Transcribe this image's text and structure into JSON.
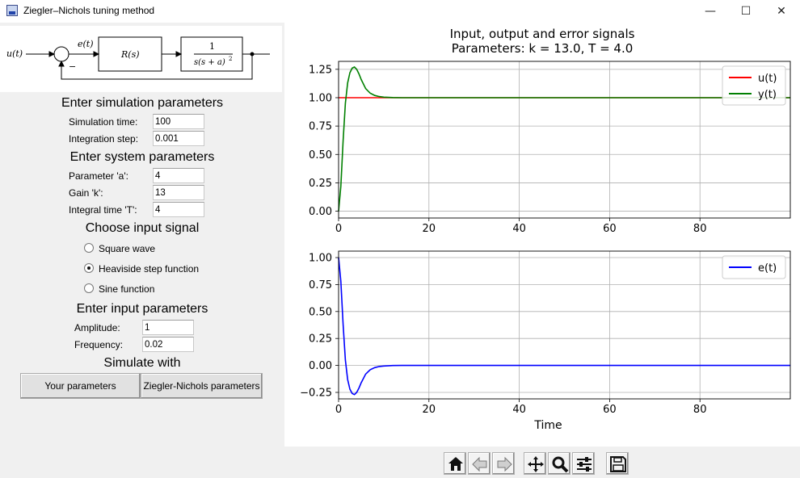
{
  "window": {
    "title": "Ziegler–Nichols tuning method",
    "minimize_glyph": "—",
    "maximize_glyph": "☐",
    "close_glyph": "✕",
    "icon": "app-icon"
  },
  "diagram": {
    "input_label": "u(t)",
    "error_label": "e(t)",
    "controller_label": "R(s)",
    "plant_numerator": "1",
    "plant_denominator": "s(s + a)",
    "plant_exponent": "2",
    "feedback_sign": "−"
  },
  "simulation": {
    "heading": "Enter simulation parameters",
    "time_label": "Simulation time:",
    "time_value": "100",
    "step_label": "Integration step:",
    "step_value": "0.001"
  },
  "system": {
    "heading": "Enter system parameters",
    "a_label": "Parameter 'a':",
    "a_value": "4",
    "k_label": "Gain 'k':",
    "k_value": "13",
    "T_label": "Integral time 'T':",
    "T_value": "4"
  },
  "input_signal": {
    "heading": "Choose input signal",
    "options": [
      {
        "label": "Square wave",
        "selected": false
      },
      {
        "label": "Heaviside step function",
        "selected": true
      },
      {
        "label": "Sine function",
        "selected": false
      }
    ]
  },
  "input_params": {
    "heading": "Enter input parameters",
    "amplitude_label": "Amplitude:",
    "amplitude_value": "1",
    "frequency_label": "Frequency:",
    "frequency_value": "0.02"
  },
  "simulate": {
    "heading": "Simulate with",
    "your_button": "Your parameters",
    "zn_button": "Ziegler-Nichols parameters"
  },
  "chart_data": [
    {
      "type": "line",
      "title": "Input, output and error signals",
      "subtitle": "Parameters: k = 13.0, T = 4.0",
      "xlim": [
        0,
        100
      ],
      "ylim": [
        -0.06,
        1.32
      ],
      "xticks": [
        0,
        20,
        40,
        60,
        80
      ],
      "yticks": [
        0.0,
        0.25,
        0.5,
        0.75,
        1.0,
        1.25
      ],
      "xtick_labels": [
        "0",
        "20",
        "40",
        "60",
        "80"
      ],
      "ytick_labels": [
        "0.00",
        "0.25",
        "0.50",
        "0.75",
        "1.00",
        "1.25"
      ],
      "grid": true,
      "legend_position": "top-right",
      "series": [
        {
          "name": "u(t)",
          "color": "#ff0000",
          "x": [
            0,
            100
          ],
          "y": [
            1.0,
            1.0
          ]
        },
        {
          "name": "y(t)",
          "color": "#008000",
          "x": [
            0,
            0.5,
            1,
            1.5,
            2,
            2.5,
            3,
            3.5,
            4,
            4.5,
            5,
            6,
            7,
            8,
            9,
            10,
            12,
            14,
            20,
            40,
            60,
            80,
            100
          ],
          "y": [
            0,
            0.22,
            0.62,
            0.95,
            1.13,
            1.22,
            1.26,
            1.27,
            1.25,
            1.21,
            1.16,
            1.08,
            1.04,
            1.02,
            1.01,
            1.005,
            1.001,
            1.0,
            1.0,
            1.0,
            1.0,
            1.0,
            1.0
          ]
        }
      ]
    },
    {
      "type": "line",
      "xlabel": "Time",
      "xlim": [
        0,
        100
      ],
      "ylim": [
        -0.31,
        1.06
      ],
      "xticks": [
        0,
        20,
        40,
        60,
        80
      ],
      "yticks": [
        -0.25,
        0.0,
        0.25,
        0.5,
        0.75,
        1.0
      ],
      "xtick_labels": [
        "0",
        "20",
        "40",
        "60",
        "80"
      ],
      "ytick_labels": [
        "−0.25",
        "0.00",
        "0.25",
        "0.50",
        "0.75",
        "1.00"
      ],
      "grid": true,
      "legend_position": "top-right",
      "series": [
        {
          "name": "e(t)",
          "color": "#0000ff",
          "x": [
            0,
            0.5,
            1,
            1.5,
            2,
            2.5,
            3,
            3.5,
            4,
            4.5,
            5,
            6,
            7,
            8,
            9,
            10,
            12,
            14,
            20,
            40,
            60,
            80,
            100
          ],
          "y": [
            1.0,
            0.78,
            0.38,
            0.05,
            -0.13,
            -0.22,
            -0.26,
            -0.27,
            -0.25,
            -0.21,
            -0.16,
            -0.08,
            -0.04,
            -0.02,
            -0.01,
            -0.005,
            -0.001,
            0.0,
            0.0,
            0.0,
            0.0,
            0.0,
            0.0
          ]
        }
      ]
    }
  ],
  "toolbar": {
    "buttons": [
      "home-icon",
      "back-icon",
      "forward-icon",
      "pan-icon",
      "zoom-icon",
      "configure-subplots-icon",
      "save-icon"
    ]
  }
}
